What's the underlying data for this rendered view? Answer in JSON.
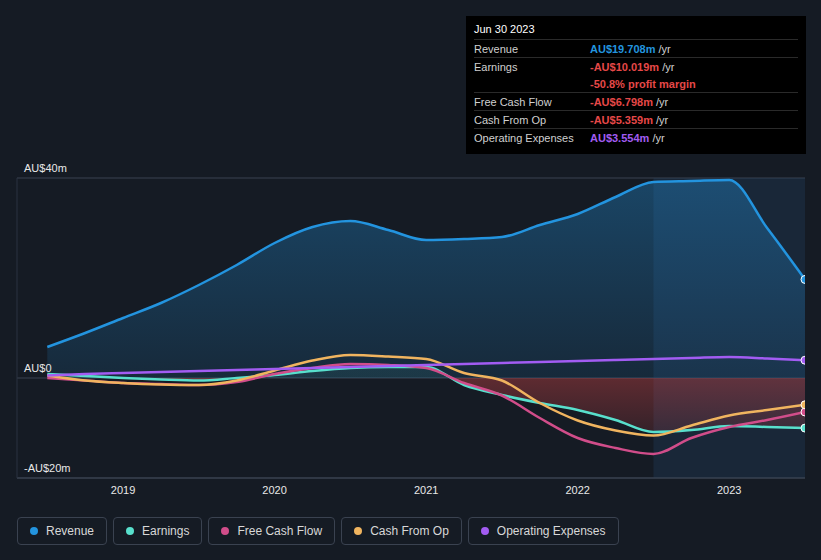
{
  "chart_data": {
    "type": "line",
    "x": [
      2018.5,
      2018.75,
      2019,
      2019.25,
      2019.5,
      2019.75,
      2020,
      2020.25,
      2020.5,
      2020.75,
      2021,
      2021.25,
      2021.5,
      2021.75,
      2022,
      2022.25,
      2022.5,
      2022.75,
      2023,
      2023.25,
      2023.5
    ],
    "xlim": [
      2018.3,
      2023.5
    ],
    "xticks": [
      2019,
      2020,
      2021,
      2022,
      2023
    ],
    "ylim": [
      -20,
      40
    ],
    "yticks": [
      {
        "value": -20,
        "label": "-AU$20m"
      },
      {
        "value": 0,
        "label": "AU$0"
      },
      {
        "value": 40,
        "label": "AU$40m"
      }
    ],
    "grid": true,
    "legend": "bottom",
    "series": [
      {
        "name": "Revenue",
        "color": "#2394df",
        "type": "area",
        "values": [
          6.2,
          9,
          12,
          15,
          18.6,
          22.6,
          27,
          30.2,
          31.4,
          29.6,
          27.6,
          27.8,
          28.2,
          30.6,
          32.8,
          36.2,
          39.2,
          39.4,
          39.6,
          30,
          19.708
        ]
      },
      {
        "name": "Earnings",
        "color": "#58dfcc",
        "type": "area",
        "values": [
          0.8,
          0.4,
          0,
          -0.3,
          -0.5,
          0,
          0.6,
          1.4,
          2,
          2.2,
          2.2,
          -1.4,
          -3.4,
          -5,
          -6.4,
          -8.4,
          -10.8,
          -10.4,
          -9.6,
          -9.8,
          -10.019
        ]
      },
      {
        "name": "Free Cash Flow",
        "color": "#d14d8a",
        "type": "line",
        "values": [
          0,
          -0.5,
          -1,
          -1.2,
          -1.4,
          -0.8,
          0.8,
          2,
          2.8,
          2.6,
          2,
          -1,
          -3.5,
          -8,
          -12,
          -14,
          -15.2,
          -12,
          -9.8,
          -8.4,
          -6.798
        ]
      },
      {
        "name": "Cash From Op",
        "color": "#f0b45f",
        "type": "line",
        "values": [
          0.5,
          -0.5,
          -1,
          -1.3,
          -1.4,
          -0.5,
          1.5,
          3.5,
          4.6,
          4.3,
          3.8,
          1,
          -0.5,
          -5,
          -8.5,
          -10.5,
          -11.5,
          -9.5,
          -7.5,
          -6.4,
          -5.359
        ]
      },
      {
        "name": "Operating Expenses",
        "color": "#a25cf2",
        "type": "line",
        "values": [
          0.5,
          0.8,
          1,
          1.2,
          1.4,
          1.6,
          1.8,
          2,
          2.2,
          2.4,
          2.6,
          2.8,
          3,
          3.2,
          3.4,
          3.6,
          3.8,
          4,
          4.2,
          3.9,
          3.554
        ]
      }
    ],
    "annotations": {
      "date": "Jun 30 2023",
      "rows": [
        {
          "label": "Revenue",
          "value": "AU$19.708m",
          "suffix": "/yr"
        },
        {
          "label": "Earnings",
          "value": "-AU$10.019m",
          "suffix": "/yr",
          "note": "-50.8% profit margin"
        },
        {
          "label": "Free Cash Flow",
          "value": "-AU$6.798m",
          "suffix": "/yr"
        },
        {
          "label": "Cash From Op",
          "value": "-AU$5.359m",
          "suffix": "/yr"
        },
        {
          "label": "Operating Expenses",
          "value": "AU$3.554m",
          "suffix": "/yr"
        }
      ]
    }
  }
}
